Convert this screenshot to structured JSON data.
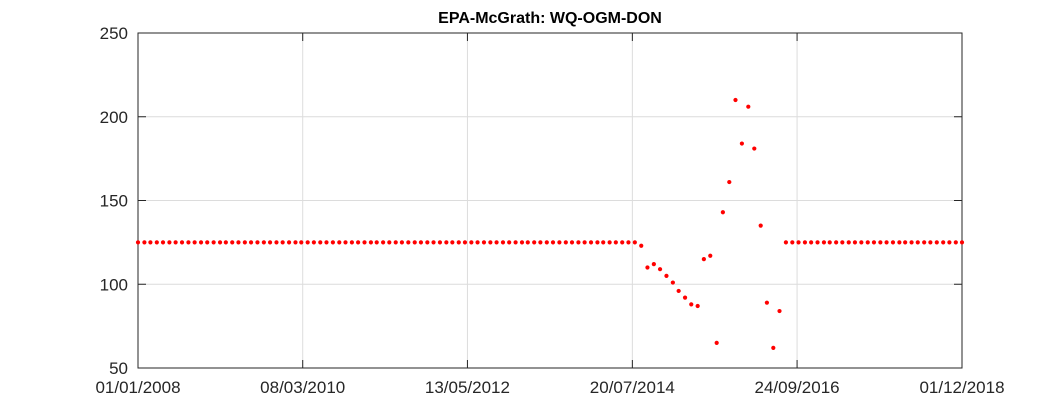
{
  "chart_data": {
    "type": "scatter",
    "title": "EPA-McGrath: WQ-OGM-DON",
    "xlabel": "",
    "ylabel": "",
    "x_axis_type": "date",
    "xlim": [
      "2008-01-01",
      "2018-12-01"
    ],
    "ylim": [
      50,
      250
    ],
    "grid": true,
    "x_ticks": [
      "2008-01-01",
      "2010-03-08",
      "2012-05-13",
      "2014-07-20",
      "2016-09-24",
      "2018-12-01"
    ],
    "x_tick_labels": [
      "01/01/2008",
      "08/03/2010",
      "13/05/2012",
      "20/07/2014",
      "24/09/2016",
      "01/12/2018"
    ],
    "y_ticks": [
      50,
      100,
      150,
      200,
      250
    ],
    "y_tick_labels": [
      "50",
      "100",
      "150",
      "200",
      "250"
    ],
    "marker_color": "#ff0000",
    "points": [
      {
        "x": "2008-01-01",
        "y": 125
      },
      {
        "x": "2008-02-01",
        "y": 125
      },
      {
        "x": "2008-03-01",
        "y": 125
      },
      {
        "x": "2008-04-01",
        "y": 125
      },
      {
        "x": "2008-05-01",
        "y": 125
      },
      {
        "x": "2008-06-01",
        "y": 125
      },
      {
        "x": "2008-07-01",
        "y": 125
      },
      {
        "x": "2008-08-01",
        "y": 125
      },
      {
        "x": "2008-09-01",
        "y": 125
      },
      {
        "x": "2008-10-01",
        "y": 125
      },
      {
        "x": "2008-11-01",
        "y": 125
      },
      {
        "x": "2008-12-01",
        "y": 125
      },
      {
        "x": "2009-01-01",
        "y": 125
      },
      {
        "x": "2009-02-01",
        "y": 125
      },
      {
        "x": "2009-03-01",
        "y": 125
      },
      {
        "x": "2009-04-01",
        "y": 125
      },
      {
        "x": "2009-05-01",
        "y": 125
      },
      {
        "x": "2009-06-01",
        "y": 125
      },
      {
        "x": "2009-07-01",
        "y": 125
      },
      {
        "x": "2009-08-01",
        "y": 125
      },
      {
        "x": "2009-09-01",
        "y": 125
      },
      {
        "x": "2009-10-01",
        "y": 125
      },
      {
        "x": "2009-11-01",
        "y": 125
      },
      {
        "x": "2009-12-01",
        "y": 125
      },
      {
        "x": "2010-01-01",
        "y": 125
      },
      {
        "x": "2010-02-01",
        "y": 125
      },
      {
        "x": "2010-03-01",
        "y": 125
      },
      {
        "x": "2010-04-01",
        "y": 125
      },
      {
        "x": "2010-05-01",
        "y": 125
      },
      {
        "x": "2010-06-01",
        "y": 125
      },
      {
        "x": "2010-07-01",
        "y": 125
      },
      {
        "x": "2010-08-01",
        "y": 125
      },
      {
        "x": "2010-09-01",
        "y": 125
      },
      {
        "x": "2010-10-01",
        "y": 125
      },
      {
        "x": "2010-11-01",
        "y": 125
      },
      {
        "x": "2010-12-01",
        "y": 125
      },
      {
        "x": "2011-01-01",
        "y": 125
      },
      {
        "x": "2011-02-01",
        "y": 125
      },
      {
        "x": "2011-03-01",
        "y": 125
      },
      {
        "x": "2011-04-01",
        "y": 125
      },
      {
        "x": "2011-05-01",
        "y": 125
      },
      {
        "x": "2011-06-01",
        "y": 125
      },
      {
        "x": "2011-07-01",
        "y": 125
      },
      {
        "x": "2011-08-01",
        "y": 125
      },
      {
        "x": "2011-09-01",
        "y": 125
      },
      {
        "x": "2011-10-01",
        "y": 125
      },
      {
        "x": "2011-11-01",
        "y": 125
      },
      {
        "x": "2011-12-01",
        "y": 125
      },
      {
        "x": "2012-01-01",
        "y": 125
      },
      {
        "x": "2012-02-01",
        "y": 125
      },
      {
        "x": "2012-03-01",
        "y": 125
      },
      {
        "x": "2012-04-01",
        "y": 125
      },
      {
        "x": "2012-05-01",
        "y": 125
      },
      {
        "x": "2012-06-01",
        "y": 125
      },
      {
        "x": "2012-07-01",
        "y": 125
      },
      {
        "x": "2012-08-01",
        "y": 125
      },
      {
        "x": "2012-09-01",
        "y": 125
      },
      {
        "x": "2012-10-01",
        "y": 125
      },
      {
        "x": "2012-11-01",
        "y": 125
      },
      {
        "x": "2012-12-01",
        "y": 125
      },
      {
        "x": "2013-01-01",
        "y": 125
      },
      {
        "x": "2013-02-01",
        "y": 125
      },
      {
        "x": "2013-03-01",
        "y": 125
      },
      {
        "x": "2013-04-01",
        "y": 125
      },
      {
        "x": "2013-05-01",
        "y": 125
      },
      {
        "x": "2013-06-01",
        "y": 125
      },
      {
        "x": "2013-07-01",
        "y": 125
      },
      {
        "x": "2013-08-01",
        "y": 125
      },
      {
        "x": "2013-09-01",
        "y": 125
      },
      {
        "x": "2013-10-01",
        "y": 125
      },
      {
        "x": "2013-11-01",
        "y": 125
      },
      {
        "x": "2013-12-01",
        "y": 125
      },
      {
        "x": "2014-01-01",
        "y": 125
      },
      {
        "x": "2014-02-01",
        "y": 125
      },
      {
        "x": "2014-03-01",
        "y": 125
      },
      {
        "x": "2014-04-01",
        "y": 125
      },
      {
        "x": "2014-05-01",
        "y": 125
      },
      {
        "x": "2014-06-01",
        "y": 125
      },
      {
        "x": "2014-07-01",
        "y": 125
      },
      {
        "x": "2014-08-01",
        "y": 125
      },
      {
        "x": "2014-09-01",
        "y": 123
      },
      {
        "x": "2014-10-01",
        "y": 110
      },
      {
        "x": "2014-11-01",
        "y": 112
      },
      {
        "x": "2014-12-01",
        "y": 109
      },
      {
        "x": "2015-01-01",
        "y": 105
      },
      {
        "x": "2015-02-01",
        "y": 101
      },
      {
        "x": "2015-03-01",
        "y": 96
      },
      {
        "x": "2015-04-01",
        "y": 92
      },
      {
        "x": "2015-05-01",
        "y": 88
      },
      {
        "x": "2015-06-01",
        "y": 87
      },
      {
        "x": "2015-07-01",
        "y": 115
      },
      {
        "x": "2015-08-01",
        "y": 117
      },
      {
        "x": "2015-09-01",
        "y": 65
      },
      {
        "x": "2015-10-01",
        "y": 143
      },
      {
        "x": "2015-11-01",
        "y": 161
      },
      {
        "x": "2015-12-01",
        "y": 210
      },
      {
        "x": "2016-01-01",
        "y": 184
      },
      {
        "x": "2016-02-01",
        "y": 206
      },
      {
        "x": "2016-03-01",
        "y": 181
      },
      {
        "x": "2016-04-01",
        "y": 135
      },
      {
        "x": "2016-05-01",
        "y": 89
      },
      {
        "x": "2016-06-01",
        "y": 62
      },
      {
        "x": "2016-07-01",
        "y": 84
      },
      {
        "x": "2016-08-01",
        "y": 125
      },
      {
        "x": "2016-09-01",
        "y": 125
      },
      {
        "x": "2016-10-01",
        "y": 125
      },
      {
        "x": "2016-11-01",
        "y": 125
      },
      {
        "x": "2016-12-01",
        "y": 125
      },
      {
        "x": "2017-01-01",
        "y": 125
      },
      {
        "x": "2017-02-01",
        "y": 125
      },
      {
        "x": "2017-03-01",
        "y": 125
      },
      {
        "x": "2017-04-01",
        "y": 125
      },
      {
        "x": "2017-05-01",
        "y": 125
      },
      {
        "x": "2017-06-01",
        "y": 125
      },
      {
        "x": "2017-07-01",
        "y": 125
      },
      {
        "x": "2017-08-01",
        "y": 125
      },
      {
        "x": "2017-09-01",
        "y": 125
      },
      {
        "x": "2017-10-01",
        "y": 125
      },
      {
        "x": "2017-11-01",
        "y": 125
      },
      {
        "x": "2017-12-01",
        "y": 125
      },
      {
        "x": "2018-01-01",
        "y": 125
      },
      {
        "x": "2018-02-01",
        "y": 125
      },
      {
        "x": "2018-03-01",
        "y": 125
      },
      {
        "x": "2018-04-01",
        "y": 125
      },
      {
        "x": "2018-05-01",
        "y": 125
      },
      {
        "x": "2018-06-01",
        "y": 125
      },
      {
        "x": "2018-07-01",
        "y": 125
      },
      {
        "x": "2018-08-01",
        "y": 125
      },
      {
        "x": "2018-09-01",
        "y": 125
      },
      {
        "x": "2018-10-01",
        "y": 125
      },
      {
        "x": "2018-11-01",
        "y": 125
      },
      {
        "x": "2018-12-01",
        "y": 125
      }
    ]
  }
}
